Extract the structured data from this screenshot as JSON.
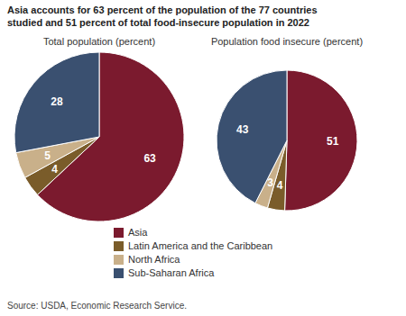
{
  "chart_data": {
    "type": "pie",
    "title": [
      "Asia accounts for 63 percent of the population of the 77 countries",
      "studied and 51 percent of total food-insecure population in 2022"
    ],
    "categories": [
      "Asia",
      "Latin America and the Caribbean",
      "North Africa",
      "Sub-Saharan Africa"
    ],
    "colors": [
      "#7b1a2e",
      "#7a5c2a",
      "#c9b08a",
      "#3a5070"
    ],
    "series": [
      {
        "name": "Total population (percent)",
        "values": [
          63,
          4,
          5,
          28
        ]
      },
      {
        "name": "Population food insecure (percent)",
        "values": [
          51,
          4,
          3,
          43
        ]
      }
    ],
    "data_labels": true,
    "legend": "bottom",
    "annotations": [
      "Source: USDA, Economic Research Service."
    ]
  }
}
